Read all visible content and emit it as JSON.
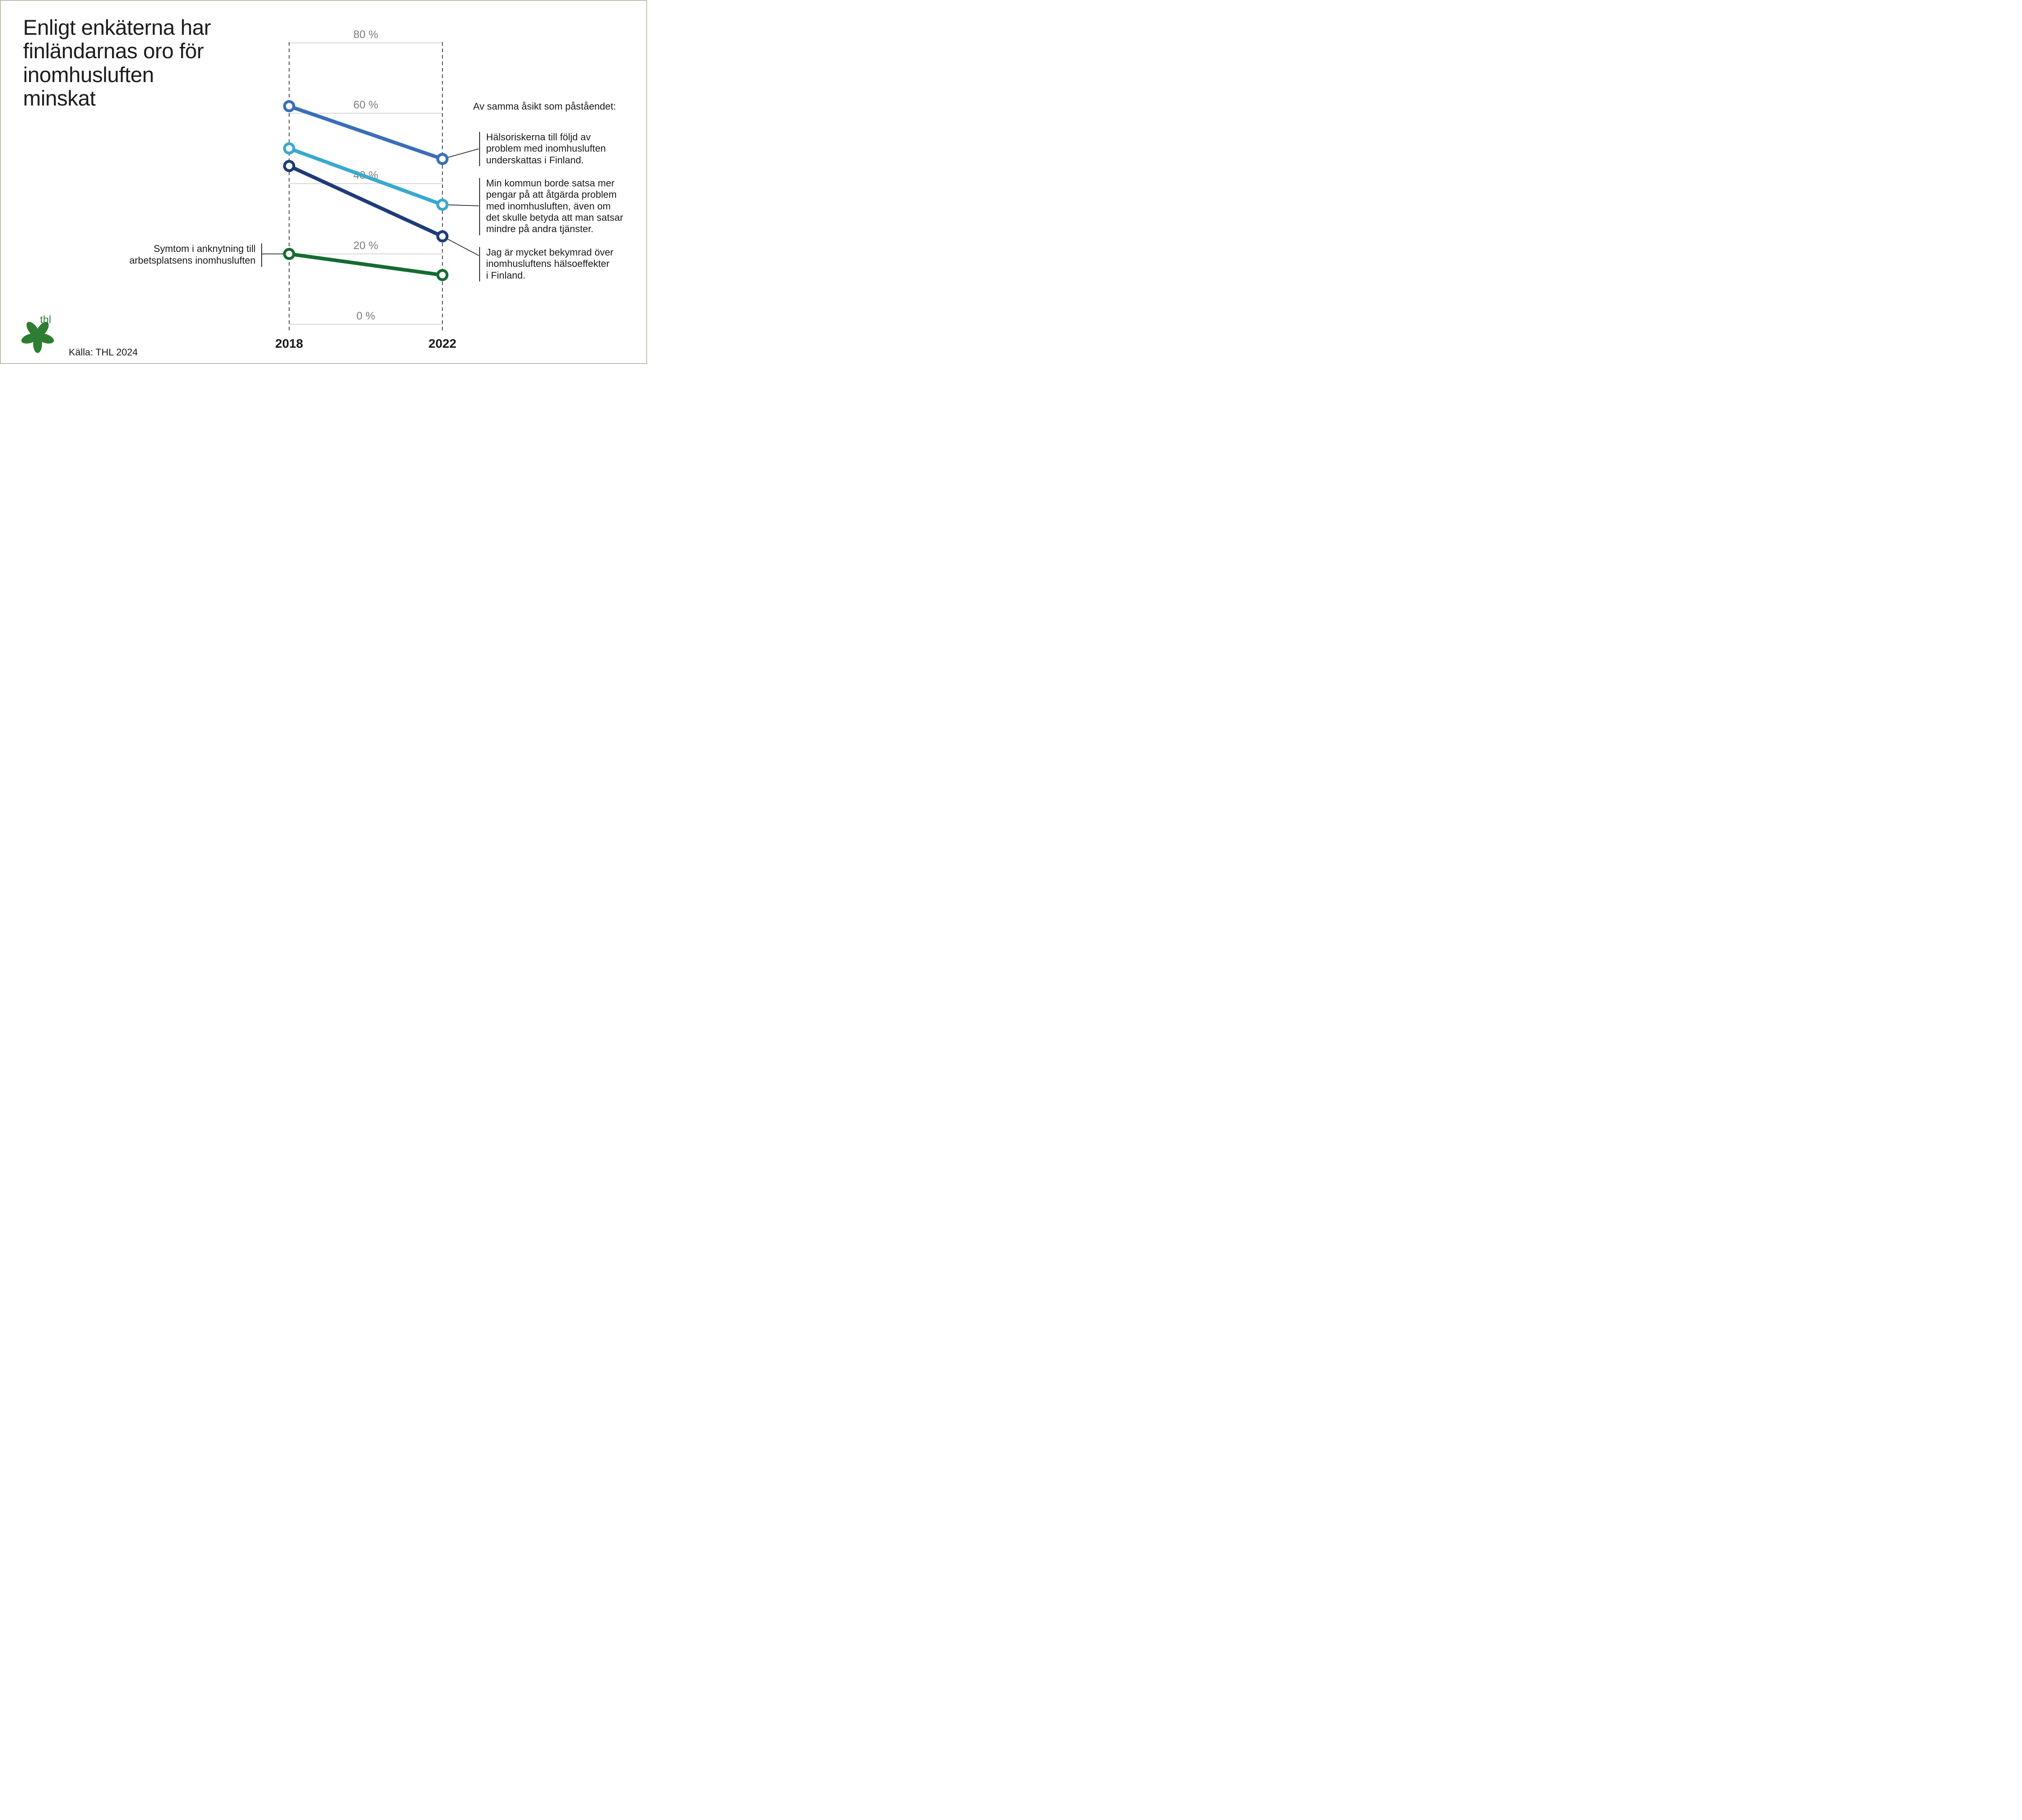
{
  "page": {
    "title": "Enligt enkäterna har\nfinländarnas oro för\ninomhusluften\nminskat",
    "source": "Källa: THL 2024",
    "logo_text": "thl"
  },
  "right_panel": {
    "header": "Av samma åsikt som påståendet:",
    "statements": [
      "Hälsoriskerna till följd av\nproblem med inomhusluften\nunderskattas i Finland.",
      "Min kommun borde satsa mer\npengar på att åtgärda problem\nmed inomhusluften, även om\ndet skulle betyda att man satsar\nmindre på andra tjänster.",
      "Jag är mycket bekymrad över\ninomhusluftens hälsoeffekter\ni Finland."
    ]
  },
  "left_annotation": "Symtom i anknytning till\narbetsplatsens inomhusluften",
  "chart_data": {
    "type": "line",
    "x": [
      "2018",
      "2022"
    ],
    "series": [
      {
        "name": "Hälsoriskerna till följd av problem med inomhusluften underskattas i Finland.",
        "color": "#3a6fb8",
        "values": [
          62,
          47
        ]
      },
      {
        "name": "Min kommun borde satsa mer pengar på att åtgärda problem med inomhusluften, även om det skulle betyda att man satsar mindre på andra tjänster.",
        "color": "#3aa9ce",
        "values": [
          50,
          34
        ]
      },
      {
        "name": "Jag är mycket bekymrad över inomhusluftens hälsoeffekter i Finland.",
        "color": "#1e3c78",
        "values": [
          45,
          25
        ]
      },
      {
        "name": "Symtom i anknytning till arbetsplatsens inomhusluften",
        "color": "#156b31",
        "values": [
          20,
          14
        ]
      }
    ],
    "yticks": [
      {
        "value": 0,
        "label": "0 %"
      },
      {
        "value": 20,
        "label": "20 %"
      },
      {
        "value": 40,
        "label": "40 %"
      },
      {
        "value": 60,
        "label": "60 %"
      },
      {
        "value": 80,
        "label": "80 %"
      }
    ],
    "ylim": [
      0,
      80
    ],
    "grid": true,
    "legend_position": "right-annotations"
  },
  "colors": {
    "brand_green": "#2e7d32",
    "text": "#1d1d1b",
    "muted_tick": "#7d7d7d",
    "grid": "#c8c8c8"
  }
}
